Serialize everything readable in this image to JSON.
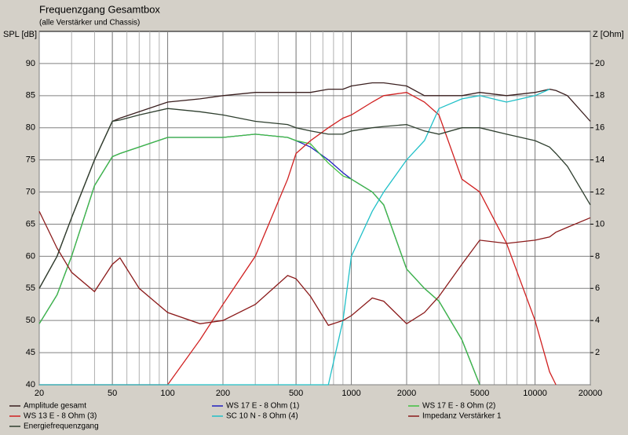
{
  "chart_data": {
    "type": "line",
    "title": "Frequenzgang Gesamtbox",
    "subtitle": "(alle Verstärker und Chassis)",
    "ylabel": "SPL [dB]",
    "y2label": "Z [Ohm]",
    "xscale": "log",
    "grid": true,
    "x": [
      20,
      25,
      30,
      40,
      50,
      55,
      70,
      100,
      150,
      200,
      300,
      450,
      500,
      600,
      750,
      900,
      1000,
      1300,
      1500,
      2000,
      2500,
      3000,
      4000,
      5000,
      7000,
      10000,
      12000,
      13000,
      15000,
      20000
    ],
    "xlim": [
      20,
      20000
    ],
    "xticks": [
      20,
      50,
      100,
      200,
      500,
      1000,
      2000,
      5000,
      10000,
      20000
    ],
    "ylim": [
      40,
      95
    ],
    "yticks": [
      40,
      45,
      50,
      55,
      60,
      65,
      70,
      75,
      80,
      85,
      90
    ],
    "y2lim": [
      0,
      22
    ],
    "y2ticks": [
      2,
      4,
      6,
      8,
      10,
      12,
      14,
      16,
      18,
      20
    ],
    "series": [
      {
        "name": "Amplitude gesamt",
        "color": "#3a1f1f",
        "values": [
          55,
          60,
          66,
          75,
          81,
          81.5,
          82.5,
          84,
          84.5,
          85,
          85.5,
          85.5,
          85.5,
          85.5,
          86,
          86,
          86.5,
          87,
          87,
          86.5,
          85,
          85,
          85,
          85.5,
          85,
          85.5,
          86,
          85.8,
          85,
          81
        ]
      },
      {
        "name": "WS 17 E - 8 Ohm  (1)",
        "color": "#2020c0",
        "values": [
          49.5,
          54,
          60,
          71,
          75.5,
          76,
          77,
          78.5,
          78.5,
          78.5,
          79,
          78.5,
          78,
          77,
          75,
          73,
          72,
          70,
          68,
          58,
          55,
          53,
          47,
          40,
          null,
          null,
          null,
          null,
          null,
          null
        ]
      },
      {
        "name": "WS 17 E - 8 Ohm  (2)",
        "color": "#40c040",
        "values": [
          49.5,
          54,
          60,
          71,
          75.5,
          76,
          77,
          78.5,
          78.5,
          78.5,
          79,
          78.5,
          78,
          77.5,
          74.5,
          72.5,
          72,
          70,
          68,
          58,
          55,
          53,
          47,
          40,
          null,
          null,
          null,
          null,
          null,
          null
        ]
      },
      {
        "name": "WS 13 E - 8 Ohm (3)",
        "color": "#d02020",
        "values": [
          40,
          40,
          40,
          40,
          40,
          40,
          40,
          40,
          47,
          52.5,
          60,
          72,
          76,
          78,
          80,
          81.5,
          82,
          84,
          85,
          85.5,
          84,
          82,
          72,
          70,
          62,
          50,
          42,
          40,
          null,
          null
        ]
      },
      {
        "name": "SC 10 N - 8 Ohm (4)",
        "color": "#20c0c8",
        "values": [
          40,
          40,
          40,
          40,
          40,
          40,
          40,
          40,
          40,
          40,
          40,
          40,
          40,
          40,
          40,
          50,
          60,
          67,
          70,
          75,
          78,
          83,
          84.5,
          85,
          84,
          85,
          86,
          null,
          null,
          null
        ]
      },
      {
        "name": "Impedanz Verstärker 1",
        "color": "#8b1a1a",
        "axis": "y2",
        "values": [
          10.8,
          8.5,
          7,
          5.8,
          7.5,
          7.9,
          6,
          4.5,
          3.8,
          4,
          5,
          6.8,
          6.6,
          5.5,
          3.7,
          4,
          4.3,
          5.4,
          5.2,
          3.8,
          4.5,
          5.5,
          7.5,
          9,
          8.8,
          9,
          9.2,
          9.5,
          9.8,
          10.4
        ]
      },
      {
        "name": "Energiefrequenzgang",
        "color": "#2f3f2f",
        "values": [
          55,
          60,
          66,
          75,
          81,
          81.2,
          82,
          83,
          82.5,
          82,
          81,
          80.5,
          80,
          79.5,
          79,
          79,
          79.5,
          80,
          80.2,
          80.5,
          79.5,
          79,
          80,
          80,
          79,
          78,
          77,
          76,
          74,
          68
        ]
      }
    ]
  }
}
